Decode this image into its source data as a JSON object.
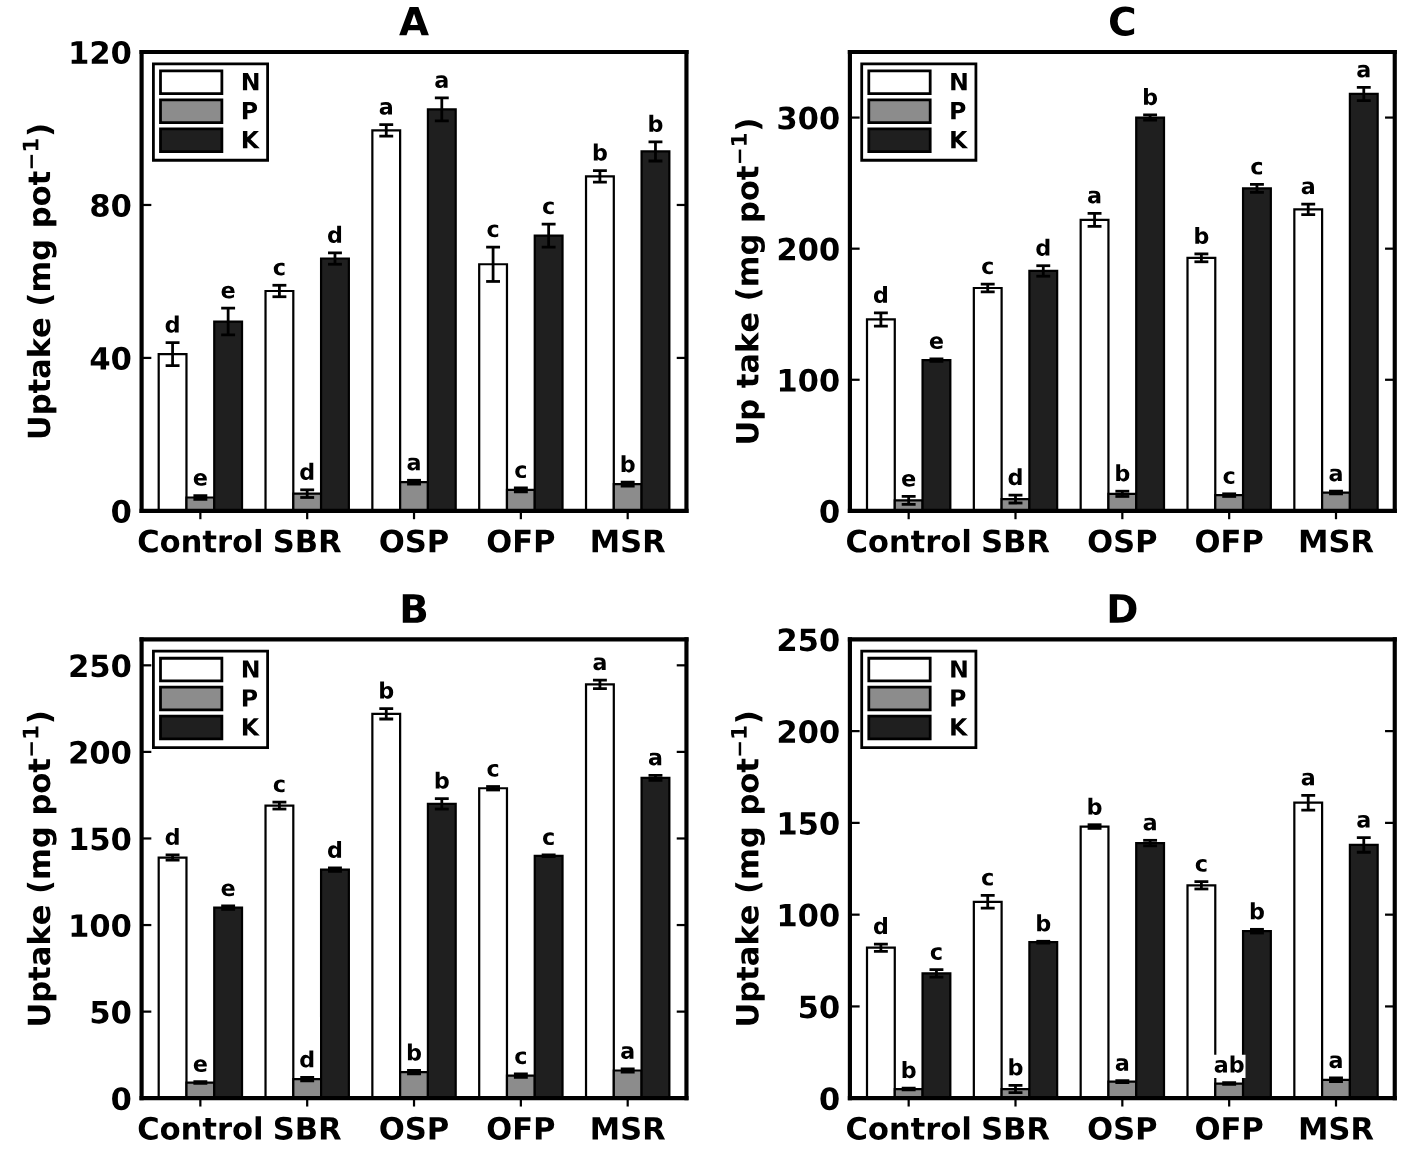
{
  "chart_data": [
    {
      "type": "bar",
      "title": "A",
      "ylabel": "Uptake (mg pot$^{−1}$)",
      "categories": [
        "Control",
        "SBR",
        "OSP",
        "OFP",
        "MSR"
      ],
      "ylim": [
        0,
        120
      ],
      "yticks": [
        0,
        40,
        80,
        120
      ],
      "legend": "top left",
      "grid": false,
      "series": [
        {
          "name": "N",
          "color": "#ffffff",
          "values": [
            41,
            57.5,
            99.5,
            64.5,
            87.5
          ],
          "errors": [
            3,
            1.5,
            1.5,
            4.5,
            1.5
          ],
          "value_labels": [
            "d",
            "c",
            "a",
            "c",
            "b"
          ]
        },
        {
          "name": "P",
          "color": "#8c8c8c",
          "values": [
            3.5,
            4.5,
            7.5,
            5.5,
            7
          ],
          "errors": [
            0.5,
            1,
            0.5,
            0.5,
            0.5
          ],
          "value_labels": [
            "e",
            "d",
            "a",
            "c",
            "b"
          ]
        },
        {
          "name": "K",
          "color": "#1f1f1f",
          "values": [
            49.5,
            66,
            105,
            72,
            94
          ],
          "errors": [
            3.5,
            1.5,
            3,
            3,
            2.5
          ],
          "value_labels": [
            "e",
            "d",
            "a",
            "c",
            "b"
          ]
        }
      ]
    },
    {
      "type": "bar",
      "title": "C",
      "ylabel": "Up take (mg pot$^{−1}$)",
      "categories": [
        "Control",
        "SBR",
        "OSP",
        "OFP",
        "MSR"
      ],
      "ylim": [
        0,
        350
      ],
      "yticks": [
        0,
        100,
        200,
        300
      ],
      "legend": "top left",
      "grid": false,
      "series": [
        {
          "name": "N",
          "color": "#ffffff",
          "values": [
            146,
            170,
            222,
            193,
            230
          ],
          "errors": [
            5,
            3,
            5,
            3,
            4
          ],
          "value_labels": [
            "d",
            "c",
            "a",
            "b",
            "a"
          ]
        },
        {
          "name": "P",
          "color": "#8c8c8c",
          "values": [
            8,
            9,
            13,
            12,
            14
          ],
          "errors": [
            3,
            3,
            2,
            1,
            1
          ],
          "value_labels": [
            "e",
            "d",
            "b",
            "c",
            "a"
          ]
        },
        {
          "name": "K",
          "color": "#1f1f1f",
          "values": [
            115,
            183,
            300,
            246,
            318
          ],
          "errors": [
            1,
            4,
            2,
            3,
            5
          ],
          "value_labels": [
            "e",
            "d",
            "b",
            "c",
            "a"
          ]
        }
      ]
    },
    {
      "type": "bar",
      "title": "B",
      "ylabel": "Uptake (mg pot$^{−1}$)",
      "categories": [
        "Control",
        "SBR",
        "OSP",
        "OFP",
        "MSR"
      ],
      "ylim": [
        0,
        265
      ],
      "yticks": [
        0,
        50,
        100,
        150,
        200,
        250
      ],
      "legend": "top left",
      "grid": false,
      "series": [
        {
          "name": "N",
          "color": "#ffffff",
          "values": [
            139,
            169,
            222,
            179,
            239
          ],
          "errors": [
            1.5,
            2,
            3,
            1,
            2.5
          ],
          "value_labels": [
            "d",
            "c",
            "b",
            "c",
            "a"
          ]
        },
        {
          "name": "P",
          "color": "#8c8c8c",
          "values": [
            9,
            11,
            15,
            13,
            16
          ],
          "errors": [
            0.5,
            1,
            1,
            1,
            1
          ],
          "value_labels": [
            "e",
            "d",
            "b",
            "c",
            "a"
          ]
        },
        {
          "name": "K",
          "color": "#1f1f1f",
          "values": [
            110,
            132,
            170,
            140,
            185
          ],
          "errors": [
            1,
            1,
            3,
            0.5,
            1.5
          ],
          "value_labels": [
            "e",
            "d",
            "b",
            "c",
            "a"
          ]
        }
      ]
    },
    {
      "type": "bar",
      "title": "D",
      "ylabel": "Uptake (mg pot$^{−1}$)",
      "categories": [
        "Control",
        "SBR",
        "OSP",
        "OFP",
        "MSR"
      ],
      "ylim": [
        0,
        250
      ],
      "yticks": [
        0,
        50,
        100,
        150,
        200,
        250
      ],
      "legend": "top left",
      "grid": false,
      "series": [
        {
          "name": "N",
          "color": "#ffffff",
          "values": [
            82,
            107,
            148,
            116,
            161
          ],
          "errors": [
            2,
            3.5,
            1,
            2,
            4
          ],
          "value_labels": [
            "d",
            "c",
            "b",
            "c",
            "a"
          ]
        },
        {
          "name": "P",
          "color": "#8c8c8c",
          "values": [
            5,
            5,
            9,
            8,
            10
          ],
          "errors": [
            0.5,
            2,
            0.5,
            0.5,
            1
          ],
          "value_labels": [
            "b",
            "b",
            "a",
            "ab",
            "a"
          ]
        },
        {
          "name": "K",
          "color": "#1f1f1f",
          "values": [
            68,
            85,
            139,
            91,
            138
          ],
          "errors": [
            2,
            0.5,
            1.5,
            1,
            4
          ],
          "value_labels": [
            "c",
            "b",
            "a",
            "b",
            "a"
          ]
        }
      ]
    }
  ]
}
